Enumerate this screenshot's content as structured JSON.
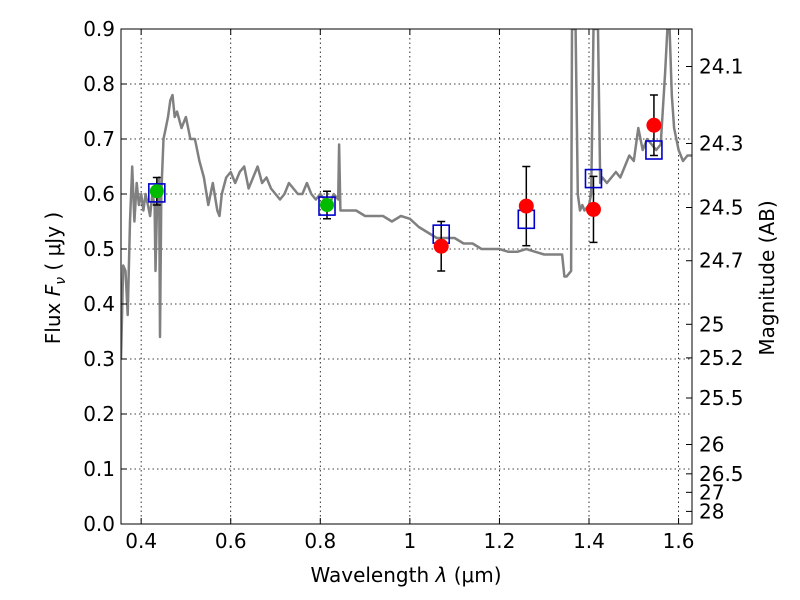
{
  "chart_data": {
    "type": "scatter",
    "xlabel_prefix": "Wavelength",
    "xlabel_symbol": "λ",
    "xlabel_unit": "(μm)",
    "ylabel_prefix": "Flux",
    "ylabel_symbol": "F",
    "ylabel_subscript": "ν",
    "ylabel_unit": "( μJy )",
    "y2label": "Magnitude (AB)",
    "xlim": [
      0.355,
      1.63
    ],
    "ylim": [
      0.0,
      0.9
    ],
    "xticks": [
      {
        "value": 0.4,
        "label": "0.4"
      },
      {
        "value": 0.6,
        "label": "0.6"
      },
      {
        "value": 0.8,
        "label": "0.8"
      },
      {
        "value": 1.0,
        "label": "1"
      },
      {
        "value": 1.2,
        "label": "1.2"
      },
      {
        "value": 1.4,
        "label": "1.4"
      },
      {
        "value": 1.6,
        "label": "1.6"
      }
    ],
    "yticks": [
      {
        "value": 0.0,
        "label": "0.0"
      },
      {
        "value": 0.1,
        "label": "0.1"
      },
      {
        "value": 0.2,
        "label": "0.2"
      },
      {
        "value": 0.3,
        "label": "0.3"
      },
      {
        "value": 0.4,
        "label": "0.4"
      },
      {
        "value": 0.5,
        "label": "0.5"
      },
      {
        "value": 0.6,
        "label": "0.6"
      },
      {
        "value": 0.7,
        "label": "0.7"
      },
      {
        "value": 0.8,
        "label": "0.8"
      },
      {
        "value": 0.9,
        "label": "0.9"
      }
    ],
    "y2ticks": [
      {
        "mag": 24.1,
        "label": "24.1"
      },
      {
        "mag": 24.3,
        "label": "24.3"
      },
      {
        "mag": 24.5,
        "label": "24.5"
      },
      {
        "mag": 24.7,
        "label": "24.7"
      },
      {
        "mag": 25.0,
        "label": "25"
      },
      {
        "mag": 25.2,
        "label": "25.2"
      },
      {
        "mag": 25.5,
        "label": "25.5"
      },
      {
        "mag": 26.0,
        "label": "26"
      },
      {
        "mag": 26.5,
        "label": "26.5"
      },
      {
        "mag": 27.0,
        "label": "27"
      },
      {
        "mag": 28.0,
        "label": "28"
      }
    ],
    "grid": true,
    "colors": {
      "spectrum": "#808080",
      "observed": "#ff0000",
      "optical": "#00bb00",
      "model_box": "#0000cc",
      "errorbar": "#000000"
    },
    "spectrum": [
      [
        0.355,
        0.3
      ],
      [
        0.36,
        0.47
      ],
      [
        0.365,
        0.46
      ],
      [
        0.37,
        0.38
      ],
      [
        0.375,
        0.55
      ],
      [
        0.38,
        0.65
      ],
      [
        0.385,
        0.55
      ],
      [
        0.39,
        0.62
      ],
      [
        0.395,
        0.58
      ],
      [
        0.4,
        0.6
      ],
      [
        0.405,
        0.57
      ],
      [
        0.41,
        0.6
      ],
      [
        0.415,
        0.58
      ],
      [
        0.42,
        0.56
      ],
      [
        0.425,
        0.6
      ],
      [
        0.43,
        0.58
      ],
      [
        0.432,
        0.46
      ],
      [
        0.436,
        0.6
      ],
      [
        0.44,
        0.63
      ],
      [
        0.442,
        0.34
      ],
      [
        0.445,
        0.6
      ],
      [
        0.45,
        0.7
      ],
      [
        0.455,
        0.72
      ],
      [
        0.46,
        0.74
      ],
      [
        0.465,
        0.77
      ],
      [
        0.47,
        0.78
      ],
      [
        0.475,
        0.74
      ],
      [
        0.48,
        0.75
      ],
      [
        0.49,
        0.72
      ],
      [
        0.5,
        0.74
      ],
      [
        0.51,
        0.7
      ],
      [
        0.52,
        0.7
      ],
      [
        0.53,
        0.66
      ],
      [
        0.54,
        0.63
      ],
      [
        0.55,
        0.58
      ],
      [
        0.56,
        0.62
      ],
      [
        0.57,
        0.57
      ],
      [
        0.575,
        0.56
      ],
      [
        0.58,
        0.6
      ],
      [
        0.59,
        0.63
      ],
      [
        0.6,
        0.64
      ],
      [
        0.61,
        0.62
      ],
      [
        0.62,
        0.64
      ],
      [
        0.63,
        0.65
      ],
      [
        0.64,
        0.61
      ],
      [
        0.65,
        0.63
      ],
      [
        0.66,
        0.65
      ],
      [
        0.67,
        0.62
      ],
      [
        0.68,
        0.63
      ],
      [
        0.69,
        0.61
      ],
      [
        0.7,
        0.6
      ],
      [
        0.71,
        0.59
      ],
      [
        0.72,
        0.6
      ],
      [
        0.73,
        0.62
      ],
      [
        0.74,
        0.61
      ],
      [
        0.75,
        0.6
      ],
      [
        0.76,
        0.6
      ],
      [
        0.77,
        0.62
      ],
      [
        0.78,
        0.6
      ],
      [
        0.79,
        0.59
      ],
      [
        0.8,
        0.6
      ],
      [
        0.81,
        0.59
      ],
      [
        0.82,
        0.58
      ],
      [
        0.83,
        0.6
      ],
      [
        0.84,
        0.59
      ],
      [
        0.842,
        0.69
      ],
      [
        0.845,
        0.57
      ],
      [
        0.86,
        0.57
      ],
      [
        0.88,
        0.57
      ],
      [
        0.9,
        0.56
      ],
      [
        0.92,
        0.56
      ],
      [
        0.94,
        0.56
      ],
      [
        0.96,
        0.55
      ],
      [
        0.98,
        0.56
      ],
      [
        1.0,
        0.555
      ],
      [
        1.02,
        0.54
      ],
      [
        1.04,
        0.53
      ],
      [
        1.06,
        0.52
      ],
      [
        1.08,
        0.52
      ],
      [
        1.1,
        0.52
      ],
      [
        1.12,
        0.51
      ],
      [
        1.14,
        0.51
      ],
      [
        1.16,
        0.5
      ],
      [
        1.18,
        0.5
      ],
      [
        1.2,
        0.5
      ],
      [
        1.22,
        0.495
      ],
      [
        1.24,
        0.495
      ],
      [
        1.26,
        0.5
      ],
      [
        1.28,
        0.495
      ],
      [
        1.3,
        0.49
      ],
      [
        1.32,
        0.49
      ],
      [
        1.34,
        0.49
      ],
      [
        1.345,
        0.45
      ],
      [
        1.35,
        0.45
      ],
      [
        1.355,
        0.455
      ],
      [
        1.36,
        0.46
      ],
      [
        1.362,
        0.9
      ],
      [
        1.37,
        0.9
      ],
      [
        1.375,
        0.6
      ],
      [
        1.38,
        0.57
      ],
      [
        1.385,
        0.58
      ],
      [
        1.39,
        0.57
      ],
      [
        1.4,
        0.58
      ],
      [
        1.405,
        0.6
      ],
      [
        1.41,
        0.9
      ],
      [
        1.42,
        0.9
      ],
      [
        1.425,
        0.62
      ],
      [
        1.43,
        0.63
      ],
      [
        1.44,
        0.62
      ],
      [
        1.45,
        0.63
      ],
      [
        1.46,
        0.64
      ],
      [
        1.47,
        0.63
      ],
      [
        1.48,
        0.65
      ],
      [
        1.49,
        0.67
      ],
      [
        1.5,
        0.66
      ],
      [
        1.51,
        0.72
      ],
      [
        1.52,
        0.68
      ],
      [
        1.53,
        0.7
      ],
      [
        1.54,
        0.69
      ],
      [
        1.55,
        0.68
      ],
      [
        1.56,
        0.69
      ],
      [
        1.57,
        0.82
      ],
      [
        1.575,
        0.9
      ],
      [
        1.58,
        0.9
      ],
      [
        1.585,
        0.78
      ],
      [
        1.59,
        0.72
      ],
      [
        1.6,
        0.68
      ],
      [
        1.61,
        0.66
      ],
      [
        1.62,
        0.67
      ],
      [
        1.63,
        0.67
      ]
    ],
    "observed_points": [
      {
        "x": 1.07,
        "y": 0.505,
        "yerr": 0.045
      },
      {
        "x": 1.26,
        "y": 0.578,
        "yerr": 0.072
      },
      {
        "x": 1.41,
        "y": 0.572,
        "yerr": 0.06
      },
      {
        "x": 1.545,
        "y": 0.725,
        "yerr": 0.055
      }
    ],
    "optical_points": [
      {
        "x": 0.435,
        "y": 0.605,
        "yerr": 0.025
      },
      {
        "x": 0.815,
        "y": 0.58,
        "yerr": 0.025
      }
    ],
    "model_points": [
      {
        "x": 0.435,
        "y": 0.602
      },
      {
        "x": 0.815,
        "y": 0.578
      },
      {
        "x": 1.07,
        "y": 0.527
      },
      {
        "x": 1.26,
        "y": 0.554
      },
      {
        "x": 1.41,
        "y": 0.628
      },
      {
        "x": 1.545,
        "y": 0.68
      }
    ]
  }
}
